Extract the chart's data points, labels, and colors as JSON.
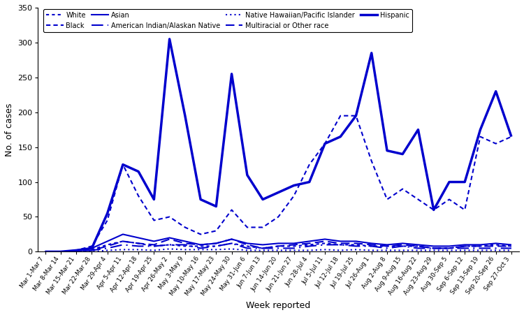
{
  "weeks": [
    "Mar 1-Mar 7",
    "Mar 8-Mar 14",
    "Mar 15-Mar 21",
    "Mar 22-Mar 28",
    "Mar 29-Apr 4",
    "Apr 5-Apr 11",
    "Apr 12-Apr 18",
    "Apr 19-Apr 25",
    "Apr 26-May 2",
    "May 3-May 9",
    "May 10-May 16",
    "May 17-May 23",
    "May 24-May 30",
    "May 31-Jun 6",
    "Jun 7-Jun 13",
    "Jun 14-Jun 20",
    "Jun 21-Jun 27",
    "Jun 28-Jul 4",
    "Jul 5-Jul 11",
    "Jul 12-Jul 18",
    "Jul 19-Jul 25",
    "Jul 26-Aug 1",
    "Aug 2-Aug 8",
    "Aug 9-Aug 15",
    "Aug 16-Aug 22",
    "Aug 23-Aug 29",
    "Aug 30-Sep 5",
    "Sep 6-Sep 12",
    "Sep 13-Sep 19",
    "Sep 20-Sep 26",
    "Sep 27-Oct 3"
  ],
  "Hispanic": [
    0,
    0,
    2,
    5,
    55,
    125,
    115,
    75,
    305,
    195,
    75,
    65,
    255,
    110,
    75,
    85,
    95,
    100,
    155,
    165,
    195,
    285,
    145,
    140,
    175,
    60,
    100,
    100,
    175,
    230,
    165
  ],
  "Black": [
    0,
    0,
    2,
    8,
    45,
    125,
    80,
    45,
    50,
    35,
    25,
    30,
    60,
    35,
    35,
    50,
    80,
    125,
    155,
    195,
    195,
    130,
    75,
    90,
    75,
    60,
    75,
    60,
    165,
    155,
    165
  ],
  "Asian": [
    0,
    0,
    2,
    5,
    15,
    25,
    20,
    15,
    20,
    15,
    10,
    12,
    18,
    12,
    10,
    12,
    12,
    15,
    18,
    15,
    15,
    12,
    10,
    12,
    10,
    8,
    8,
    10,
    10,
    12,
    10
  ],
  "White": [
    0,
    0,
    1,
    3,
    10,
    15,
    12,
    8,
    10,
    8,
    8,
    8,
    12,
    8,
    5,
    8,
    8,
    10,
    12,
    10,
    10,
    8,
    8,
    8,
    8,
    5,
    5,
    8,
    8,
    10,
    8
  ],
  "American Indian/Alaskan Native": [
    0,
    0,
    1,
    2,
    5,
    10,
    8,
    8,
    10,
    10,
    5,
    8,
    12,
    5,
    5,
    5,
    5,
    8,
    10,
    10,
    8,
    8,
    5,
    8,
    5,
    5,
    5,
    5,
    5,
    5,
    5
  ],
  "Native Hawaiian/Pacific Islander": [
    0,
    0,
    0,
    0,
    2,
    3,
    3,
    2,
    4,
    3,
    3,
    3,
    4,
    2,
    2,
    2,
    2,
    2,
    3,
    2,
    3,
    2,
    2,
    2,
    2,
    2,
    2,
    2,
    2,
    2,
    2
  ],
  "Multiracial or Other race": [
    0,
    0,
    1,
    2,
    8,
    15,
    12,
    10,
    18,
    12,
    10,
    12,
    18,
    10,
    5,
    8,
    10,
    12,
    15,
    12,
    12,
    10,
    8,
    10,
    8,
    5,
    5,
    8,
    8,
    8,
    8
  ],
  "ylim": [
    0,
    350
  ],
  "yticks": [
    0,
    50,
    100,
    150,
    200,
    250,
    300,
    350
  ],
  "ylabel": "No. of cases",
  "xlabel": "Week reported",
  "color": "#0000CD"
}
